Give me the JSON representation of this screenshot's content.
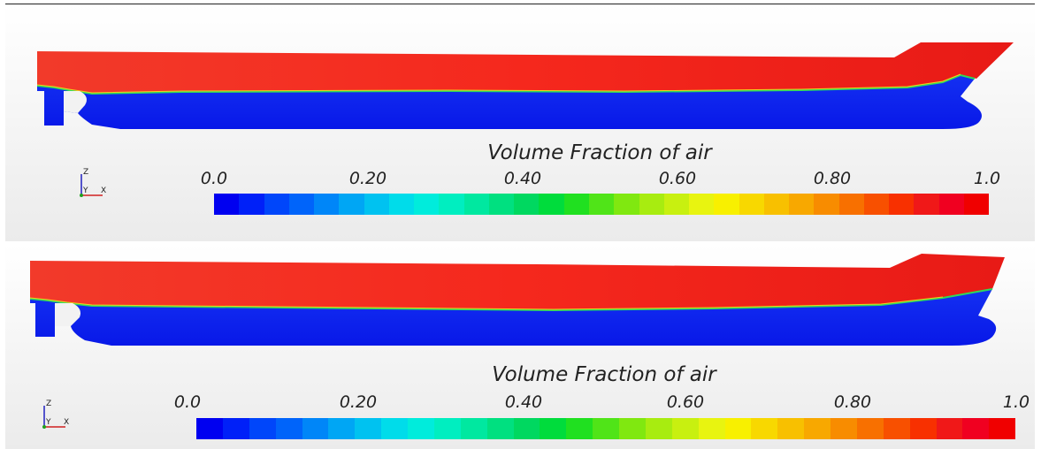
{
  "panels": [
    {
      "legend": {
        "title": "Volume Fraction of air",
        "ticks": [
          "0.0",
          "0.20",
          "0.40",
          "0.60",
          "0.80",
          "1.0"
        ]
      },
      "axes": {
        "z": "Z",
        "y": "Y",
        "x": "X"
      }
    },
    {
      "legend": {
        "title": "Volume Fraction of air",
        "ticks": [
          "0.0",
          "0.20",
          "0.40",
          "0.60",
          "0.80",
          "1.0"
        ]
      },
      "axes": {
        "z": "Z",
        "y": "Y",
        "x": "X"
      }
    }
  ],
  "colorscale": {
    "range": [
      0.0,
      1.0
    ],
    "colors": [
      "#0000f0",
      "#0020f8",
      "#0046fa",
      "#0064fa",
      "#0086f8",
      "#00a6f4",
      "#00c2f0",
      "#00dcea",
      "#00ecdc",
      "#00eec0",
      "#00e8a0",
      "#00e080",
      "#00d860",
      "#00dc3c",
      "#20e020",
      "#50e418",
      "#80e810",
      "#a8ec10",
      "#c8f010",
      "#e8f410",
      "#f8f000",
      "#f8d800",
      "#f8c000",
      "#f8a800",
      "#f88c00",
      "#f87000",
      "#f85000",
      "#f83000",
      "#f01818",
      "#f00020",
      "#f00000"
    ]
  },
  "field_colors": {
    "air": "#f52a1e",
    "water": "#0a1ff0"
  }
}
